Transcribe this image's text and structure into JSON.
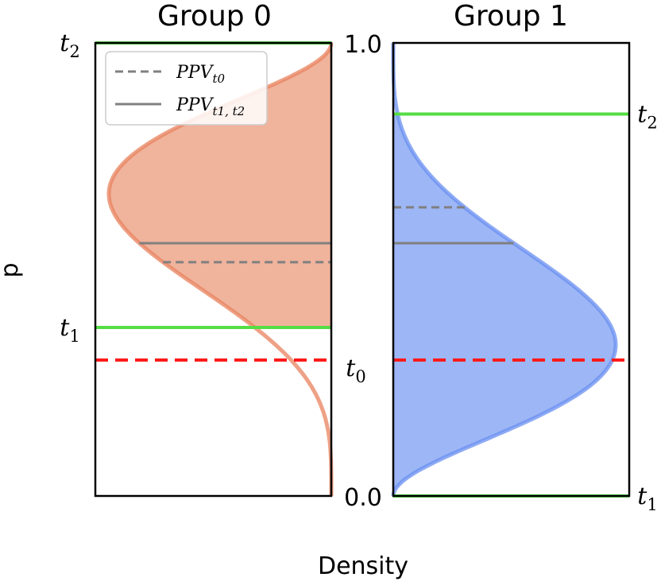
{
  "chart_data": {
    "type": "area",
    "ylabel": "p",
    "xlabel": "Density",
    "ylim": [
      0.0,
      1.0
    ],
    "y_tick_labels": [
      "0.0",
      "1.0"
    ],
    "legend": {
      "placement": "upper-left of Group 0 panel",
      "entries": [
        {
          "label_main": "PPV",
          "label_sub": "t0",
          "style": "dashed",
          "color": "#808080"
        },
        {
          "label_main": "PPV",
          "label_sub": "t1, t2",
          "style": "solid",
          "color": "#808080"
        }
      ]
    },
    "panels": [
      {
        "title": "Group 0",
        "color": "#e8825e",
        "fill": "#f0b39c",
        "curve_shape": "beta(5,3)-like, mirrored (density increases to the left)",
        "threshold_labels": {
          "t0": {
            "main": "t",
            "sub": "0"
          },
          "t1": {
            "main": "t",
            "sub": "1"
          },
          "t2": {
            "main": "t",
            "sub": "2"
          }
        },
        "t0": 0.3,
        "t1": 0.372,
        "t2": 1.0,
        "ppv_t0": 0.516,
        "ppv_t1_t2": 0.558
      },
      {
        "title": "Group 1",
        "color": "#6a8ff0",
        "fill": "#9db6f5",
        "curve_shape": "beta(3,5)-like, density increases to the right",
        "threshold_labels": {
          "t1": {
            "main": "t",
            "sub": "1"
          },
          "t2": {
            "main": "t",
            "sub": "2"
          }
        },
        "t0": 0.3,
        "t1": 0.0,
        "t2": 0.843,
        "ppv_t0": 0.637,
        "ppv_t1_t2": 0.558
      }
    ],
    "colors": {
      "t0_line": "#ff1a1a",
      "t_lines": "#55dd44",
      "ppv_lines": "#808080"
    }
  }
}
